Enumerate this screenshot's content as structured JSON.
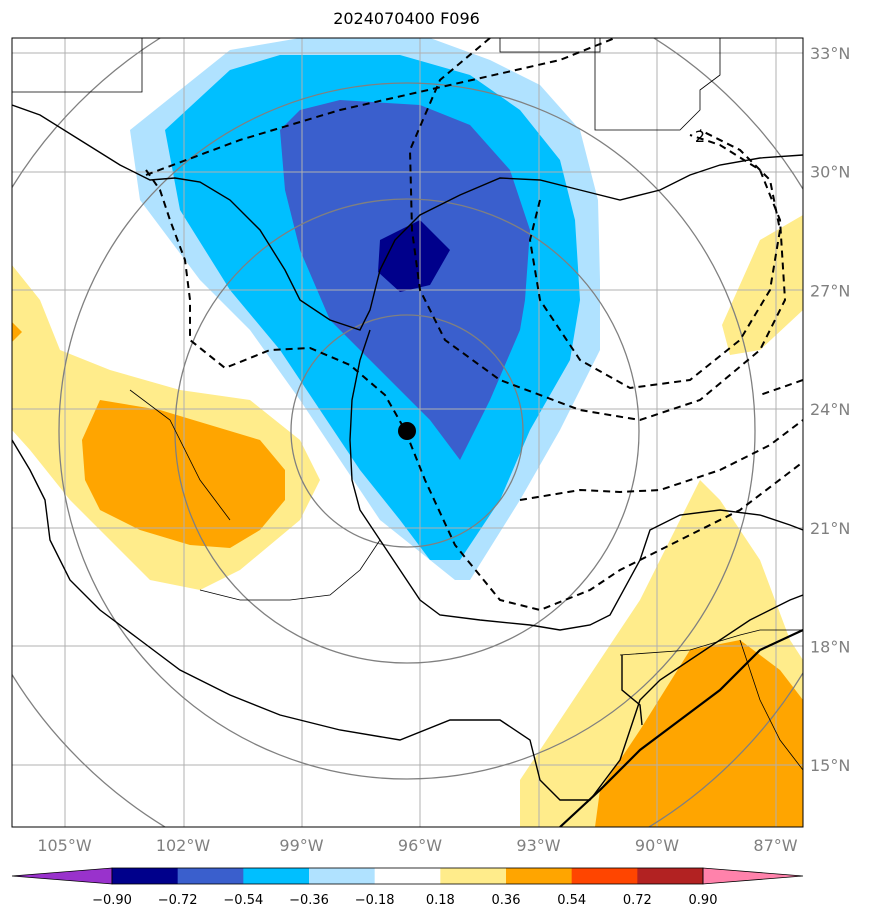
{
  "title": "2024070400 F096",
  "map": {
    "lat_labels": [
      {
        "text": "33°N",
        "lat": 33
      },
      {
        "text": "30°N",
        "lat": 30
      },
      {
        "text": "27°N",
        "lat": 27
      },
      {
        "text": "24°N",
        "lat": 24
      },
      {
        "text": "21°N",
        "lat": 21
      },
      {
        "text": "18°N",
        "lat": 18
      },
      {
        "text": "15°N",
        "lat": 15
      }
    ],
    "lon_labels": [
      {
        "text": "105°W",
        "lon": -105
      },
      {
        "text": "102°W",
        "lon": -102
      },
      {
        "text": "99°W",
        "lon": -99
      },
      {
        "text": "96°W",
        "lon": -96
      },
      {
        "text": "93°W",
        "lon": -93
      },
      {
        "text": "90°W",
        "lon": -90
      },
      {
        "text": "87°W",
        "lon": -87
      }
    ],
    "contour_label": "2",
    "storm_center": {
      "lon": -96.3,
      "lat": 23.4
    }
  },
  "colorbar": {
    "labels": [
      "−0.90",
      "−0.72",
      "−0.54",
      "−0.36",
      "−0.18",
      "0.18",
      "0.36",
      "0.54",
      "0.72",
      "0.90"
    ],
    "colors": [
      "#9932cc",
      "#00008b",
      "#3a5fcd",
      "#00bfff",
      "#b0e2ff",
      "#ffffff",
      "#ffec8b",
      "#ffa500",
      "#ff4500",
      "#b22222",
      "#ff82ab"
    ]
  },
  "colors": {
    "grid": "#b0b0b0",
    "range_rings": "#808080",
    "coast": "#000000"
  }
}
